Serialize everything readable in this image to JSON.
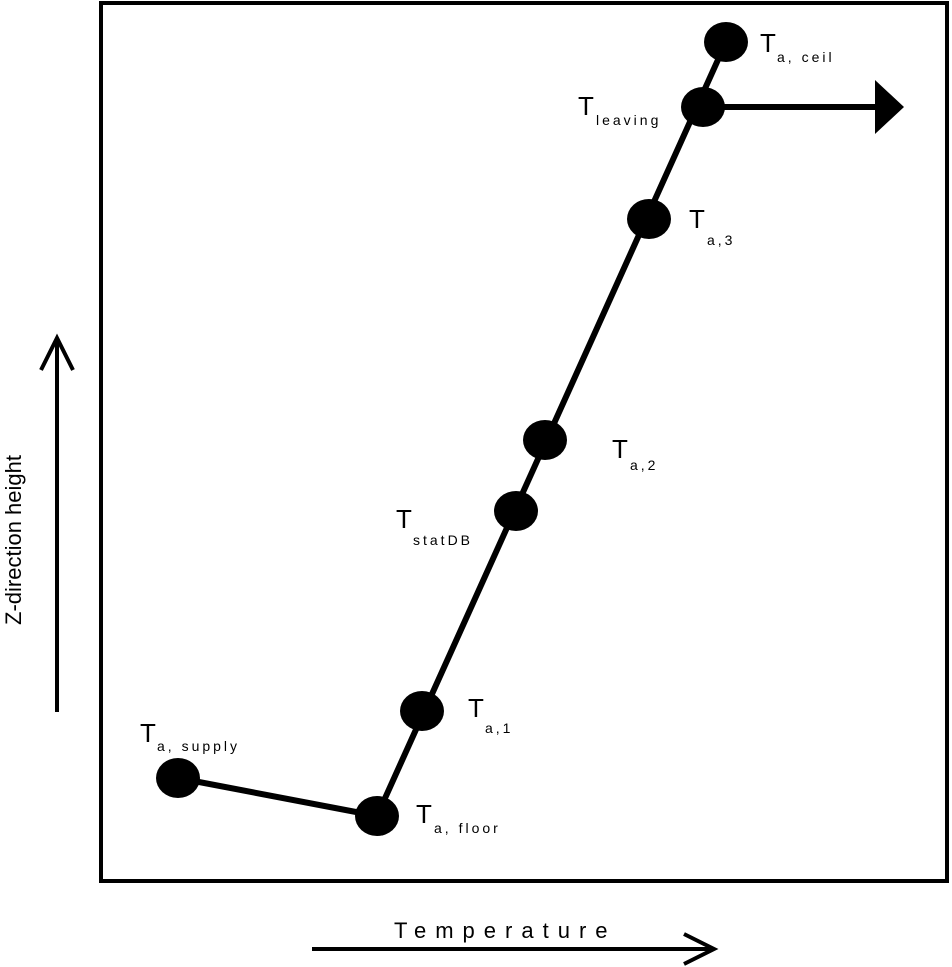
{
  "axes": {
    "y_label": "Z-direction height",
    "x_label": "Temperature"
  },
  "points": [
    {
      "id": "supply",
      "symbol": "T",
      "subscript": "a, supply"
    },
    {
      "id": "floor",
      "symbol": "T",
      "subscript": "a, floor"
    },
    {
      "id": "a1",
      "symbol": "T",
      "subscript": "a,1"
    },
    {
      "id": "statdb",
      "symbol": "T",
      "subscript": "statDB"
    },
    {
      "id": "a2",
      "symbol": "T",
      "subscript": "a,2"
    },
    {
      "id": "a3",
      "symbol": "T",
      "subscript": "a,3"
    },
    {
      "id": "leaving",
      "symbol": "T",
      "subscript": "leaving"
    },
    {
      "id": "ceil",
      "symbol": "T",
      "subscript": "a, ceil"
    }
  ],
  "colors": {
    "stroke": "#000000",
    "background": "#ffffff"
  }
}
